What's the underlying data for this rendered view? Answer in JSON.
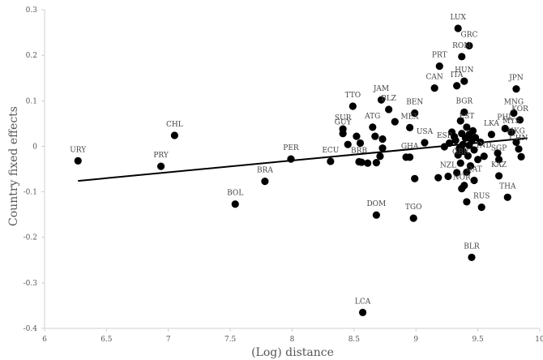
{
  "chart_data": {
    "type": "scatter",
    "title": "",
    "xlabel": "(Log) distance",
    "ylabel": "Country fixed effects",
    "xlim": [
      6,
      10
    ],
    "ylim": [
      -0.4,
      0.3
    ],
    "x_ticks": [
      "6",
      "6.5",
      "7",
      "7.5",
      "8",
      "8.5",
      "9",
      "9.5",
      "10"
    ],
    "y_ticks": [
      "0.3",
      "0.2",
      "0.1",
      "0",
      "-0.1",
      "-0.2",
      "-0.3",
      "-0.4"
    ],
    "grid": false,
    "legend": false,
    "fit_line": {
      "x": [
        6.27,
        9.9
      ],
      "y": [
        -0.076,
        0.018
      ]
    },
    "labeled_points": [
      {
        "label": "URY",
        "x": 6.27,
        "y": -0.032
      },
      {
        "label": "PRY",
        "x": 6.94,
        "y": -0.044
      },
      {
        "label": "CHL",
        "x": 7.05,
        "y": 0.024
      },
      {
        "label": "BOL",
        "x": 7.54,
        "y": -0.127
      },
      {
        "label": "BRA",
        "x": 7.78,
        "y": -0.077
      },
      {
        "label": "PER",
        "x": 7.99,
        "y": -0.028
      },
      {
        "label": "ECU",
        "x": 8.31,
        "y": -0.033
      },
      {
        "label": "TTO",
        "x": 8.49,
        "y": 0.088
      },
      {
        "label": "SUR",
        "x": 8.41,
        "y": 0.038
      },
      {
        "label": "GUY",
        "x": 8.41,
        "y": 0.028
      },
      {
        "label": "BRB",
        "x": 8.54,
        "y": -0.034
      },
      {
        "label": "ATG",
        "x": 8.65,
        "y": 0.042
      },
      {
        "label": "JAM",
        "x": 8.72,
        "y": 0.102
      },
      {
        "label": "BLZ",
        "x": 8.78,
        "y": 0.081
      },
      {
        "label": "MEX",
        "x": 8.95,
        "y": 0.041
      },
      {
        "label": "BEN",
        "x": 8.99,
        "y": 0.073
      },
      {
        "label": "USA",
        "x": 9.07,
        "y": 0.008
      },
      {
        "label": "GHA",
        "x": 8.95,
        "y": -0.024
      },
      {
        "label": "DOM",
        "x": 8.68,
        "y": -0.151
      },
      {
        "label": "TGO",
        "x": 8.98,
        "y": -0.158
      },
      {
        "label": "LCA",
        "x": 8.57,
        "y": -0.365
      },
      {
        "label": "CAN",
        "x": 9.15,
        "y": 0.128
      },
      {
        "label": "PRT",
        "x": 9.19,
        "y": 0.176
      },
      {
        "label": "LUX",
        "x": 9.34,
        "y": 0.259
      },
      {
        "label": "ROM",
        "x": 9.37,
        "y": 0.197
      },
      {
        "label": "GRC",
        "x": 9.43,
        "y": 0.221
      },
      {
        "label": "HUN",
        "x": 9.39,
        "y": 0.143
      },
      {
        "label": "ITA",
        "x": 9.33,
        "y": 0.133
      },
      {
        "label": "BGR",
        "x": 9.39,
        "y": 0.075
      },
      {
        "label": "ESP",
        "x": 9.23,
        "y": -0.001
      },
      {
        "label": "EST",
        "x": 9.41,
        "y": 0.042
      },
      {
        "label": "NZL",
        "x": 9.26,
        "y": -0.066
      },
      {
        "label": "GBR",
        "x": 9.36,
        "y": -0.037
      },
      {
        "label": "QAT",
        "x": 9.47,
        "y": -0.075
      },
      {
        "label": "NOR",
        "x": 9.37,
        "y": -0.093
      },
      {
        "label": "RUS",
        "x": 9.53,
        "y": -0.134
      },
      {
        "label": "BLR",
        "x": 9.45,
        "y": -0.244
      },
      {
        "label": "LKA",
        "x": 9.61,
        "y": 0.026
      },
      {
        "label": "IND",
        "x": 9.55,
        "y": -0.022
      },
      {
        "label": "SGP",
        "x": 9.67,
        "y": -0.029
      },
      {
        "label": "KAZ",
        "x": 9.67,
        "y": -0.065
      },
      {
        "label": "THA",
        "x": 9.74,
        "y": -0.112
      },
      {
        "label": "JPN",
        "x": 9.81,
        "y": 0.126
      },
      {
        "label": "MNG",
        "x": 9.79,
        "y": 0.073
      },
      {
        "label": "KOR",
        "x": 9.84,
        "y": 0.058
      },
      {
        "label": "MYS",
        "x": 9.77,
        "y": 0.031
      },
      {
        "label": "PHL",
        "x": 9.72,
        "y": 0.039
      },
      {
        "label": "HKG",
        "x": 9.81,
        "y": 0.009
      },
      {
        "label": "CHN",
        "x": 9.83,
        "y": -0.006
      }
    ],
    "unlabeled_points": [
      {
        "x": 8.45,
        "y": 0.004
      },
      {
        "x": 8.52,
        "y": 0.022
      },
      {
        "x": 8.55,
        "y": 0.007
      },
      {
        "x": 8.56,
        "y": -0.035
      },
      {
        "x": 8.61,
        "y": -0.037
      },
      {
        "x": 8.67,
        "y": 0.022
      },
      {
        "x": 8.68,
        "y": -0.036
      },
      {
        "x": 8.71,
        "y": -0.022
      },
      {
        "x": 8.73,
        "y": -0.004
      },
      {
        "x": 8.73,
        "y": 0.016
      },
      {
        "x": 8.83,
        "y": 0.054
      },
      {
        "x": 8.92,
        "y": -0.024
      },
      {
        "x": 8.99,
        "y": -0.071
      },
      {
        "x": 9.18,
        "y": -0.069
      },
      {
        "x": 9.27,
        "y": 0.007
      },
      {
        "x": 9.29,
        "y": 0.031
      },
      {
        "x": 9.31,
        "y": 0.021
      },
      {
        "x": 9.32,
        "y": 0.013
      },
      {
        "x": 9.33,
        "y": -0.058
      },
      {
        "x": 9.34,
        "y": -0.019
      },
      {
        "x": 9.35,
        "y": -0.005
      },
      {
        "x": 9.36,
        "y": 0.056
      },
      {
        "x": 9.37,
        "y": 0.028
      },
      {
        "x": 9.38,
        "y": -0.011
      },
      {
        "x": 9.38,
        "y": 0.004
      },
      {
        "x": 9.39,
        "y": -0.086
      },
      {
        "x": 9.4,
        "y": 0.018
      },
      {
        "x": 9.41,
        "y": -0.057
      },
      {
        "x": 9.41,
        "y": -0.122
      },
      {
        "x": 9.42,
        "y": -0.021
      },
      {
        "x": 9.43,
        "y": 0.002
      },
      {
        "x": 9.43,
        "y": 0.026
      },
      {
        "x": 9.44,
        "y": -0.043
      },
      {
        "x": 9.45,
        "y": 0.012
      },
      {
        "x": 9.46,
        "y": 0.034
      },
      {
        "x": 9.47,
        "y": -0.008
      },
      {
        "x": 9.48,
        "y": 0.019
      },
      {
        "x": 9.5,
        "y": -0.029
      },
      {
        "x": 9.52,
        "y": 0.009
      },
      {
        "x": 9.66,
        "y": -0.015
      },
      {
        "x": 9.85,
        "y": -0.023
      }
    ]
  }
}
